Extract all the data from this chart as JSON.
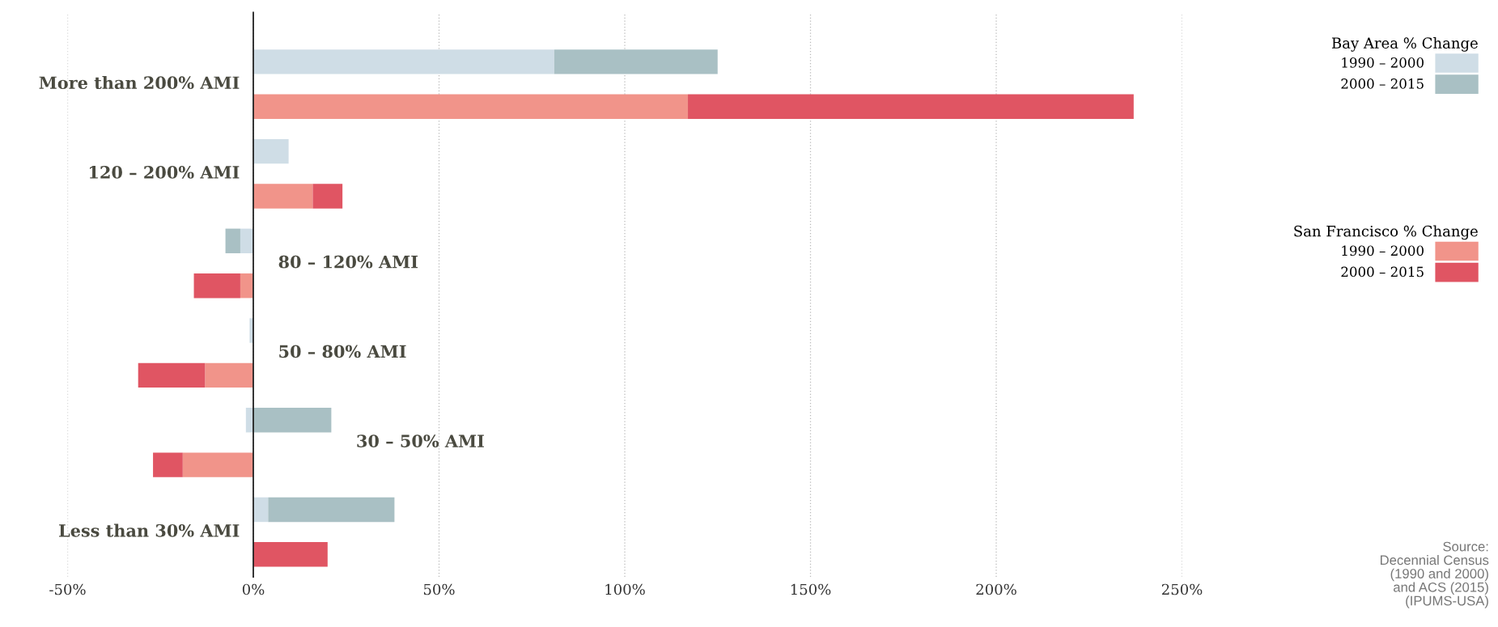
{
  "chart_data": {
    "type": "bar",
    "orientation": "horizontal",
    "stacked": true,
    "categories": [
      "More than 200% AMI",
      null,
      "120 – 200% AMI",
      null,
      "80 – 120% AMI",
      null,
      "50 – 80% AMI",
      null,
      "30 – 50% AMI",
      null,
      "Less than 30% AMI",
      null
    ],
    "legend_title": [
      "Bay Area % Change",
      "San Francisco % Change"
    ],
    "series": [
      {
        "name": "1990 – 2000",
        "color": "#cfdde6",
        "values": [
          81,
          null,
          9.5,
          null,
          -3.5,
          null,
          -1,
          null,
          -2,
          null,
          4,
          null
        ]
      },
      {
        "name": "2000 – 2015",
        "color": "#a9c0c4",
        "values": [
          44,
          null,
          null,
          null,
          -4,
          null,
          null,
          null,
          21,
          null,
          34,
          null
        ]
      },
      {
        "name": "1990 – 2000",
        "color": "#f1948a",
        "values": [
          null,
          117,
          null,
          16,
          null,
          -3.5,
          null,
          -13,
          null,
          -19,
          null,
          null
        ]
      },
      {
        "name": "2000 – 2015",
        "color": "#e05563",
        "values": [
          null,
          120,
          null,
          8,
          null,
          -12.5,
          null,
          -18,
          null,
          -8,
          null,
          20
        ]
      }
    ],
    "xlim": [
      -50,
      250
    ],
    "xticks": [
      {
        "value": -50,
        "label": "-50%"
      },
      {
        "value": 0,
        "label": "0%"
      },
      {
        "value": 50,
        "label": "50%"
      },
      {
        "value": 100,
        "label": "100%"
      },
      {
        "value": 150,
        "label": "150%"
      },
      {
        "value": 200,
        "label": "200%"
      },
      {
        "value": 250,
        "label": "250%"
      }
    ],
    "grid": "x",
    "legend": "right",
    "annotations": [
      "Source:\nDecennial Census\n(1990 and 2000)\nand ACS (2015)\n(IPUMS-USA)"
    ]
  }
}
